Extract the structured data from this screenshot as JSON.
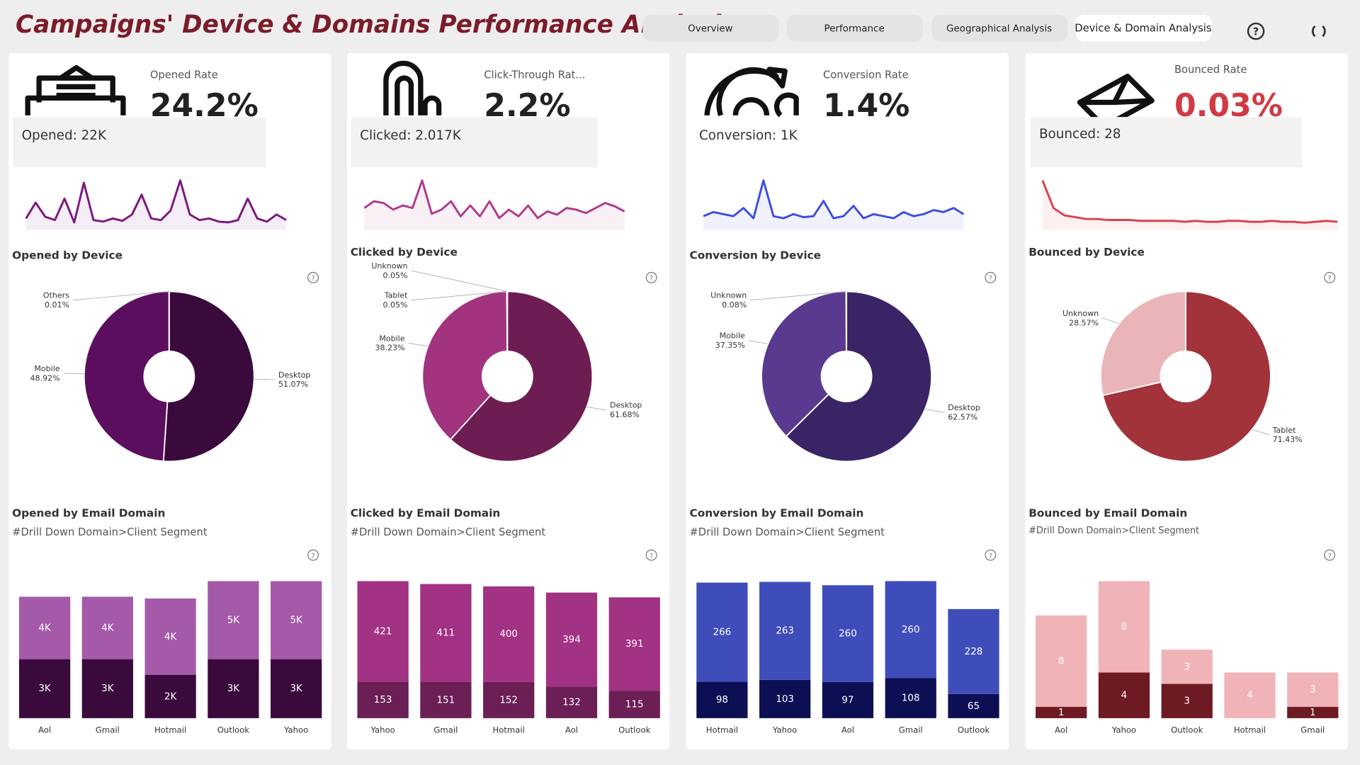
{
  "title": "Campaigns' Device & Domains Performance Analysis",
  "tabs": [
    "Overview",
    "Performance",
    "Geographical Analysis",
    "Device & Domain Analysis"
  ],
  "panels": [
    {
      "kpi_label": "Opened Rate",
      "kpi_value": "24.2%",
      "kpi_color": "#222222",
      "count_label": "Opened: 22K"
    },
    {
      "kpi_label": "Click-Through Rat...",
      "kpi_value": "2.2%",
      "kpi_color": "#222222",
      "count_label": "Clicked: 2.017K"
    },
    {
      "kpi_label": "Conversion Rate",
      "kpi_value": "1.4%",
      "kpi_color": "#222222",
      "count_label": "Conversion: 1K"
    },
    {
      "kpi_label": "Bounced Rate",
      "kpi_value": "0.03%",
      "kpi_color": "#d13a44",
      "count_label": "Bounced: 28"
    }
  ],
  "chart_data": [
    {
      "type": "line",
      "color": "#7a1a7c",
      "values": [
        10,
        30,
        12,
        8,
        35,
        5,
        55,
        8,
        6,
        10,
        7,
        15,
        40,
        10,
        8,
        20,
        58,
        15,
        8,
        10,
        6,
        5,
        8,
        35,
        10,
        6,
        15,
        8
      ]
    },
    {
      "type": "pie",
      "title": "Opened by Device",
      "categories": [
        "Desktop",
        "Mobile",
        "Others"
      ],
      "values": [
        51.07,
        48.92,
        0.01
      ],
      "value_labels": [
        "51.07%",
        "48.92%",
        "0.01%"
      ],
      "colors": [
        "#3a0a3d",
        "#5b0d5e",
        "#c8c8c8"
      ]
    },
    {
      "type": "bar",
      "title": "Opened by Email Domain",
      "subtitle": "#Drill Down Domain>Client Segment",
      "categories": [
        "Aol",
        "Gmail",
        "Hotmail",
        "Outlook",
        "Yahoo"
      ],
      "series": [
        {
          "color": "#3a0a3d",
          "values": [
            3400,
            3400,
            2500,
            3400,
            3400
          ],
          "value_labels": [
            "3K",
            "3K",
            "2K",
            "3K",
            "3K"
          ]
        },
        {
          "color": "#a45aa8",
          "values": [
            3600,
            3600,
            4400,
            4500,
            4500
          ],
          "value_labels": [
            "4K",
            "4K",
            "4K",
            "5K",
            "5K"
          ]
        }
      ]
    },
    {
      "type": "line",
      "color": "#b03a8a",
      "values": [
        22,
        30,
        28,
        20,
        25,
        22,
        55,
        15,
        20,
        30,
        12,
        25,
        12,
        30,
        10,
        20,
        12,
        25,
        10,
        18,
        14,
        22,
        20,
        16,
        22,
        28,
        24,
        18
      ]
    },
    {
      "type": "pie",
      "title": "Clicked by Device",
      "categories": [
        "Desktop",
        "Mobile",
        "Tablet",
        "Unknown"
      ],
      "values": [
        61.68,
        38.23,
        0.05,
        0.05
      ],
      "value_labels": [
        "61.68%",
        "38.23%",
        "0.05%",
        "0.05%"
      ],
      "colors": [
        "#6e1d52",
        "#a2337f",
        "#d9a5c8",
        "#c48ab2"
      ]
    },
    {
      "type": "bar",
      "title": "Clicked by Email Domain",
      "subtitle": "#Drill Down Domain>Client Segment",
      "categories": [
        "Yahoo",
        "Gmail",
        "Hotmail",
        "Aol",
        "Outlook"
      ],
      "series": [
        {
          "color": "#6b1f55",
          "values": [
            153,
            151,
            152,
            132,
            115
          ]
        },
        {
          "color": "#a23283",
          "values": [
            421,
            411,
            400,
            394,
            391
          ]
        }
      ]
    },
    {
      "type": "line",
      "color": "#3d4ee0",
      "values": [
        10,
        14,
        12,
        10,
        18,
        8,
        45,
        10,
        8,
        12,
        9,
        10,
        25,
        8,
        10,
        20,
        8,
        12,
        10,
        8,
        14,
        10,
        12,
        16,
        14,
        18,
        12
      ]
    },
    {
      "type": "pie",
      "title": "Conversion by Device",
      "categories": [
        "Desktop",
        "Mobile",
        "Unknown"
      ],
      "values": [
        62.57,
        37.35,
        0.08
      ],
      "value_labels": [
        "62.57%",
        "37.35%",
        "0.08%"
      ],
      "colors": [
        "#3b2466",
        "#5a3a8f",
        "#9a8fb5"
      ]
    },
    {
      "type": "bar",
      "title": "Conversion by Email Domain",
      "subtitle": "#Drill Down Domain>Client Segment",
      "categories": [
        "Hotmail",
        "Yahoo",
        "Aol",
        "Gmail",
        "Outlook"
      ],
      "series": [
        {
          "color": "#0d0f55",
          "values": [
            98,
            103,
            97,
            108,
            65
          ]
        },
        {
          "color": "#3f4dbb",
          "values": [
            266,
            263,
            260,
            260,
            228
          ]
        }
      ]
    },
    {
      "type": "line",
      "color": "#d9434e",
      "values": [
        50,
        20,
        12,
        10,
        8,
        8,
        7,
        7,
        7,
        6,
        6,
        6,
        6,
        5,
        6,
        5,
        5,
        6,
        6,
        5,
        5,
        6,
        5,
        5,
        4,
        5,
        6,
        5
      ]
    },
    {
      "type": "pie",
      "title": "Bounced by Device",
      "categories": [
        "Tablet",
        "Unknown"
      ],
      "values": [
        71.43,
        28.57
      ],
      "value_labels": [
        "71.43%",
        "28.57%"
      ],
      "colors": [
        "#a3333a",
        "#eab5b8"
      ]
    },
    {
      "type": "bar",
      "title": "Bounced by Email Domain",
      "subtitle": "#Drill Down Domain>Client Segment",
      "categories": [
        "Aol",
        "Yahoo",
        "Outlook",
        "Hotmail",
        "Gmail"
      ],
      "series": [
        {
          "color": "#6e1a22",
          "values": [
            1,
            4,
            3,
            null,
            1
          ]
        },
        {
          "color": "#f0b4b8",
          "values": [
            8,
            8,
            3,
            4,
            3
          ]
        }
      ]
    }
  ]
}
